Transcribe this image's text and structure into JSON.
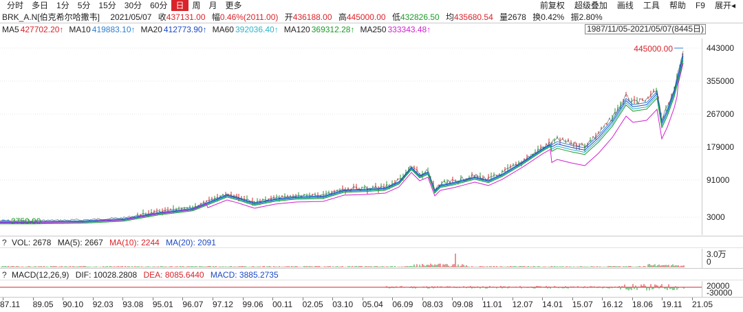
{
  "toolbar": {
    "periods": [
      "分时",
      "多日",
      "1分",
      "5分",
      "15分",
      "30分",
      "60分",
      "日",
      "周",
      "月",
      "更多"
    ],
    "active_period": "日",
    "right": [
      "前复权",
      "超级叠加",
      "画线",
      "工具",
      "帮助",
      "F9",
      "展开◂"
    ]
  },
  "quote": {
    "symbol": "BRK_A.N[伯克希尔哈撒韦]",
    "date": "2021/05/07",
    "close_label": "收",
    "close": "437131.00",
    "change_label": "幅",
    "change": "0.46%(2011.00)",
    "open_label": "开",
    "open": "436188.00",
    "high_label": "高",
    "high": "445000.00",
    "low_label": "低",
    "low": "432826.50",
    "avg_label": "均",
    "avg": "435680.54",
    "volume_label": "量",
    "volume": "2678",
    "turnover_label": "换",
    "turnover": "0.42%",
    "amplitude_label": "振",
    "amplitude": "2.80%"
  },
  "ma": {
    "items": [
      {
        "label": "MA5",
        "value": "427702.20↑",
        "color": "#d9232a"
      },
      {
        "label": "MA10",
        "value": "419883.10↑",
        "color": "#2a7fd4"
      },
      {
        "label": "MA20",
        "value": "412773.90↑",
        "color": "#1b48c4"
      },
      {
        "label": "MA60",
        "value": "392036.40↑",
        "color": "#2bb3c8"
      },
      {
        "label": "MA120",
        "value": "369312.28↑",
        "color": "#1a9a2a"
      },
      {
        "label": "MA250",
        "value": "333343.48↑",
        "color": "#d21fd2"
      }
    ],
    "date_range": "1987/11/05-2021/05/07(8445日)"
  },
  "main_chart": {
    "yaxis_ticks": [
      "443000",
      "355000",
      "267000",
      "179000",
      "91000",
      "3000"
    ],
    "high_marker": "445000.00",
    "low_marker": "2750.00"
  },
  "volume_panel": {
    "help": "?",
    "title": "VOL: 2678",
    "ma5": "MA(5): 2667",
    "ma10": "MA(10): 2244",
    "ma20": "MA(20): 2091",
    "yaxis_ticks": [
      "3.0万",
      "0"
    ]
  },
  "macd_panel": {
    "help": "?",
    "title": "MACD(12,26,9)",
    "dif": "DIF: 10028.2808",
    "dea": "DEA: 8085.6440",
    "macd": "MACD: 3885.2735",
    "yaxis_ticks": [
      "20000",
      "-30000"
    ]
  },
  "xaxis": {
    "ticks": [
      "87.11",
      "89.05",
      "90.10",
      "92.03",
      "93.08",
      "95.01",
      "96.07",
      "97.12",
      "99.06",
      "00.11",
      "02.05",
      "03.10",
      "05.04",
      "06.09",
      "08.03",
      "09.08",
      "11.01",
      "12.07",
      "14.01",
      "15.07",
      "16.12",
      "18.06",
      "19.11",
      "21.05"
    ]
  },
  "colors": {
    "up": "#d9232a",
    "down": "#1a9a2a",
    "accent_active": "#d9232a",
    "dif_line": "#222222",
    "dea_line": "#d9232a",
    "macd_line": "#1b48c4"
  }
}
